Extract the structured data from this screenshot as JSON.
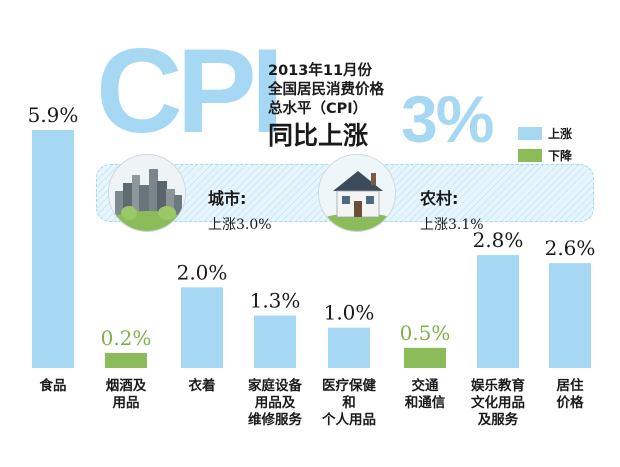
{
  "header": {
    "logo_text": "CPI",
    "line1": "2013年11月份",
    "line2": "全国居民消费价格",
    "line3": "总水平（CPI）",
    "line4": "同比上涨",
    "big_value": "3%"
  },
  "legend": [
    {
      "label": "上涨",
      "color": "#a7d8f3"
    },
    {
      "label": "下降",
      "color": "#8cbc5a"
    }
  ],
  "regions": [
    {
      "name": "城市:",
      "value": "上涨3.0%",
      "icon": "city-skyline-icon"
    },
    {
      "name": "农村:",
      "value": "上涨3.1%",
      "icon": "country-house-icon"
    }
  ],
  "chart_data": {
    "type": "bar",
    "title": "2013年11月份全国居民消费价格总水平（CPI）同比上涨3%",
    "categories": [
      "食品",
      "烟酒及用品",
      "衣着",
      "家庭设备用品及维修服务",
      "医疗保健和个人用品",
      "交通和通信",
      "娱乐教育文化用品及服务",
      "居住价格"
    ],
    "category_lines": [
      [
        "食品"
      ],
      [
        "烟酒及",
        "用品"
      ],
      [
        "衣着"
      ],
      [
        "家庭设备",
        "用品及",
        "维修服务"
      ],
      [
        "医疗保健",
        "和",
        "个人用品"
      ],
      [
        "交通",
        "和通信"
      ],
      [
        "娱乐教育",
        "文化用品",
        "及服务"
      ],
      [
        "居住",
        "价格"
      ]
    ],
    "values": [
      5.9,
      0.2,
      2.0,
      1.3,
      1.0,
      0.5,
      2.8,
      2.6
    ],
    "labels": [
      "5.9%",
      "0.2%",
      "2.0%",
      "1.3%",
      "1.0%",
      "0.5%",
      "2.8%",
      "2.6%"
    ],
    "colors": [
      "#a7d8f3",
      "#8cbc5a",
      "#a7d8f3",
      "#a7d8f3",
      "#a7d8f3",
      "#8cbc5a",
      "#a7d8f3",
      "#a7d8f3"
    ],
    "series_colors": {
      "up": "#a7d8f3",
      "down": "#8cbc5a"
    },
    "legend_position": "right",
    "grid": false,
    "ylim": [
      0,
      6
    ]
  }
}
